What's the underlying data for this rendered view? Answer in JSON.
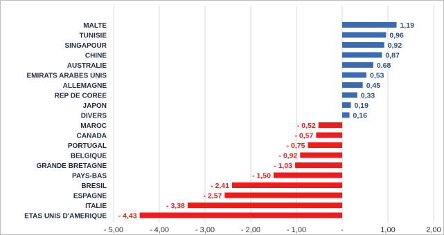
{
  "chart_data": {
    "type": "bar",
    "orientation": "horizontal",
    "categories": [
      "MALTE",
      "TUNISIE",
      "SINGAPOUR",
      "CHINE",
      "AUSTRALIE",
      "EMIRATS ARABES UNIS",
      "ALLEMAGNE",
      "REP DE COREE",
      "JAPON",
      "DIVERS",
      "MAROC",
      "CANADA",
      "PORTUGAL",
      "BELGIQUE",
      "GRANDE BRETAGNE",
      "PAYS-BAS",
      "BRESIL",
      "ESPAGNE",
      "ITALIE",
      "ETAS UNIS D'AMERIQUE"
    ],
    "values": [
      1.19,
      0.96,
      0.92,
      0.87,
      0.68,
      0.53,
      0.45,
      0.33,
      0.19,
      0.16,
      -0.52,
      -0.57,
      -0.75,
      -0.92,
      -1.03,
      -1.5,
      -2.41,
      -2.57,
      -3.38,
      -4.43
    ],
    "value_labels": [
      "1,19",
      "0,96",
      "0,92",
      "0,87",
      "0,68",
      "0,53",
      "0,45",
      "0,33",
      "0,19",
      "0,16",
      "- 0,52",
      "- 0,57",
      "- 0,75",
      "- 0,92",
      "- 1,03",
      "- 1,50",
      "- 2,41",
      "- 2,57",
      "- 3,38",
      "- 4,43"
    ],
    "x_ticks": [
      -5,
      -4,
      -3,
      -2,
      -1,
      0,
      1,
      2
    ],
    "x_tick_labels": [
      "- 5,00",
      "- 4,00",
      "- 3,00",
      "- 2,00",
      "- 1,00",
      "-",
      "1,00",
      "2,00"
    ],
    "xlim": [
      -5,
      2
    ],
    "title": "",
    "xlabel": "",
    "ylabel": "",
    "grid": "vertical",
    "legend": "none",
    "colors": {
      "positive": "#3a6cb4",
      "negative": "#ee1c1c",
      "grid": "#d9d9d9",
      "border": "#bfbfbf"
    }
  }
}
